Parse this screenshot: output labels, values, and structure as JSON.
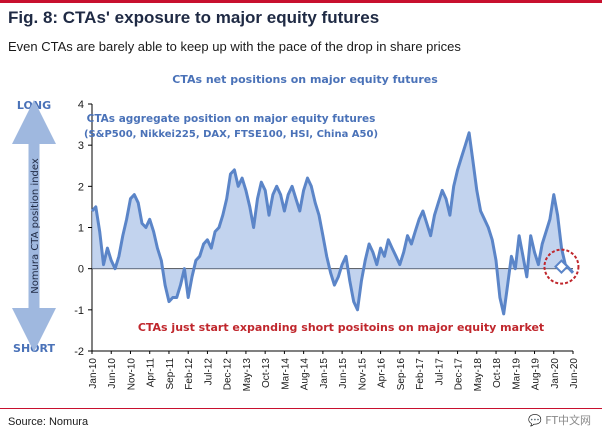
{
  "header": {
    "figure_title": "Fig. 8: CTAs' exposure to major equity futures",
    "subtitle": "Even CTAs are barely able to keep up with the pace of the drop in share prices"
  },
  "footer": {
    "source": "Source: Nomura",
    "watermark": "💬 FT中文网"
  },
  "chart_data": {
    "type": "area",
    "title": "CTAs net positions on major equity futures",
    "ylabel": "Nomura CTA position index",
    "ylim": [
      -2,
      4
    ],
    "yticks": [
      -2,
      -1,
      0,
      1,
      2,
      3,
      4
    ],
    "grid": false,
    "long_label": "LONG",
    "short_label": "SHORT",
    "x_ticks": [
      "Jan-10",
      "Jun-10",
      "Nov-10",
      "Apr-11",
      "Sep-11",
      "Feb-12",
      "Jul-12",
      "Dec-12",
      "May-13",
      "Oct-13",
      "Mar-14",
      "Aug-14",
      "Jan-15",
      "Jun-15",
      "Nov-15",
      "Apr-16",
      "Sep-16",
      "Feb-17",
      "Jul-17",
      "Dec-17",
      "May-18",
      "Oct-18",
      "Mar-19",
      "Aug-19",
      "Jan-20",
      "Jun-20"
    ],
    "annotations": {
      "series_label": "CTAs aggregate position on major equity futures",
      "series_components": "(S&P500, Nikkei225, DAX, FTSE100, HSI, China A50)",
      "callout": "CTAs just start expanding short positoins on major equity market"
    },
    "colors": {
      "line": "#5b85c8",
      "fill": "#aec4e8",
      "accent": "#c0272d",
      "text": "#4a72b8"
    },
    "series": [
      {
        "x": [
          0,
          1,
          2,
          3,
          4,
          5,
          6,
          7,
          8,
          9,
          10,
          11,
          12,
          13,
          14,
          15,
          16,
          17,
          18,
          19,
          20,
          21,
          22,
          23,
          24,
          25,
          26,
          27,
          28,
          29,
          30,
          31,
          32,
          33,
          34,
          35,
          36,
          37,
          38,
          39,
          40,
          41,
          42,
          43,
          44,
          45,
          46,
          47,
          48,
          49,
          50,
          51,
          52,
          53,
          54,
          55,
          56,
          57,
          58,
          59,
          60,
          61,
          62,
          63,
          64,
          65,
          66,
          67,
          68,
          69,
          70,
          71,
          72,
          73,
          74,
          75,
          76,
          77,
          78,
          79,
          80,
          81,
          82,
          83,
          84,
          85,
          86,
          87,
          88,
          89,
          90,
          91,
          92,
          93,
          94,
          95,
          96,
          97,
          98,
          99,
          100,
          101,
          102,
          103,
          104,
          105,
          106,
          107,
          108,
          109,
          110,
          111,
          112,
          113,
          114,
          115,
          116,
          117,
          118,
          119,
          120,
          121,
          122,
          123,
          124,
          125
        ],
        "values": [
          1.4,
          1.5,
          0.9,
          0.1,
          0.5,
          0.2,
          0.0,
          0.3,
          0.8,
          1.2,
          1.7,
          1.8,
          1.6,
          1.1,
          1.0,
          1.2,
          0.9,
          0.5,
          0.2,
          -0.4,
          -0.8,
          -0.7,
          -0.7,
          -0.4,
          0.0,
          -0.7,
          -0.2,
          0.2,
          0.3,
          0.6,
          0.7,
          0.5,
          0.9,
          1.0,
          1.3,
          1.7,
          2.3,
          2.4,
          2.0,
          2.2,
          1.9,
          1.5,
          1.0,
          1.7,
          2.1,
          1.9,
          1.3,
          1.8,
          2.0,
          1.8,
          1.4,
          1.8,
          2.0,
          1.7,
          1.4,
          1.9,
          2.2,
          2.0,
          1.6,
          1.3,
          0.8,
          0.3,
          -0.1,
          -0.4,
          -0.2,
          0.1,
          0.3,
          -0.3,
          -0.8,
          -1.0,
          -0.3,
          0.2,
          0.6,
          0.4,
          0.1,
          0.5,
          0.3,
          0.7,
          0.5,
          0.3,
          0.1,
          0.4,
          0.8,
          0.6,
          0.9,
          1.2,
          1.4,
          1.1,
          0.8,
          1.3,
          1.6,
          1.9,
          1.7,
          1.3,
          2.0,
          2.4,
          2.7,
          3.0,
          3.3,
          2.6,
          1.9,
          1.4,
          1.2,
          1.0,
          0.7,
          0.2,
          -0.7,
          -1.1,
          -0.4,
          0.3,
          0.0,
          0.8,
          0.3,
          -0.2,
          0.8,
          0.4,
          0.1,
          0.6,
          0.9,
          1.2,
          1.8,
          1.3,
          0.5,
          0.1,
          0.0,
          -0.1
        ],
        "marker_at": {
          "x": 122,
          "y": 0.05
        }
      }
    ]
  }
}
